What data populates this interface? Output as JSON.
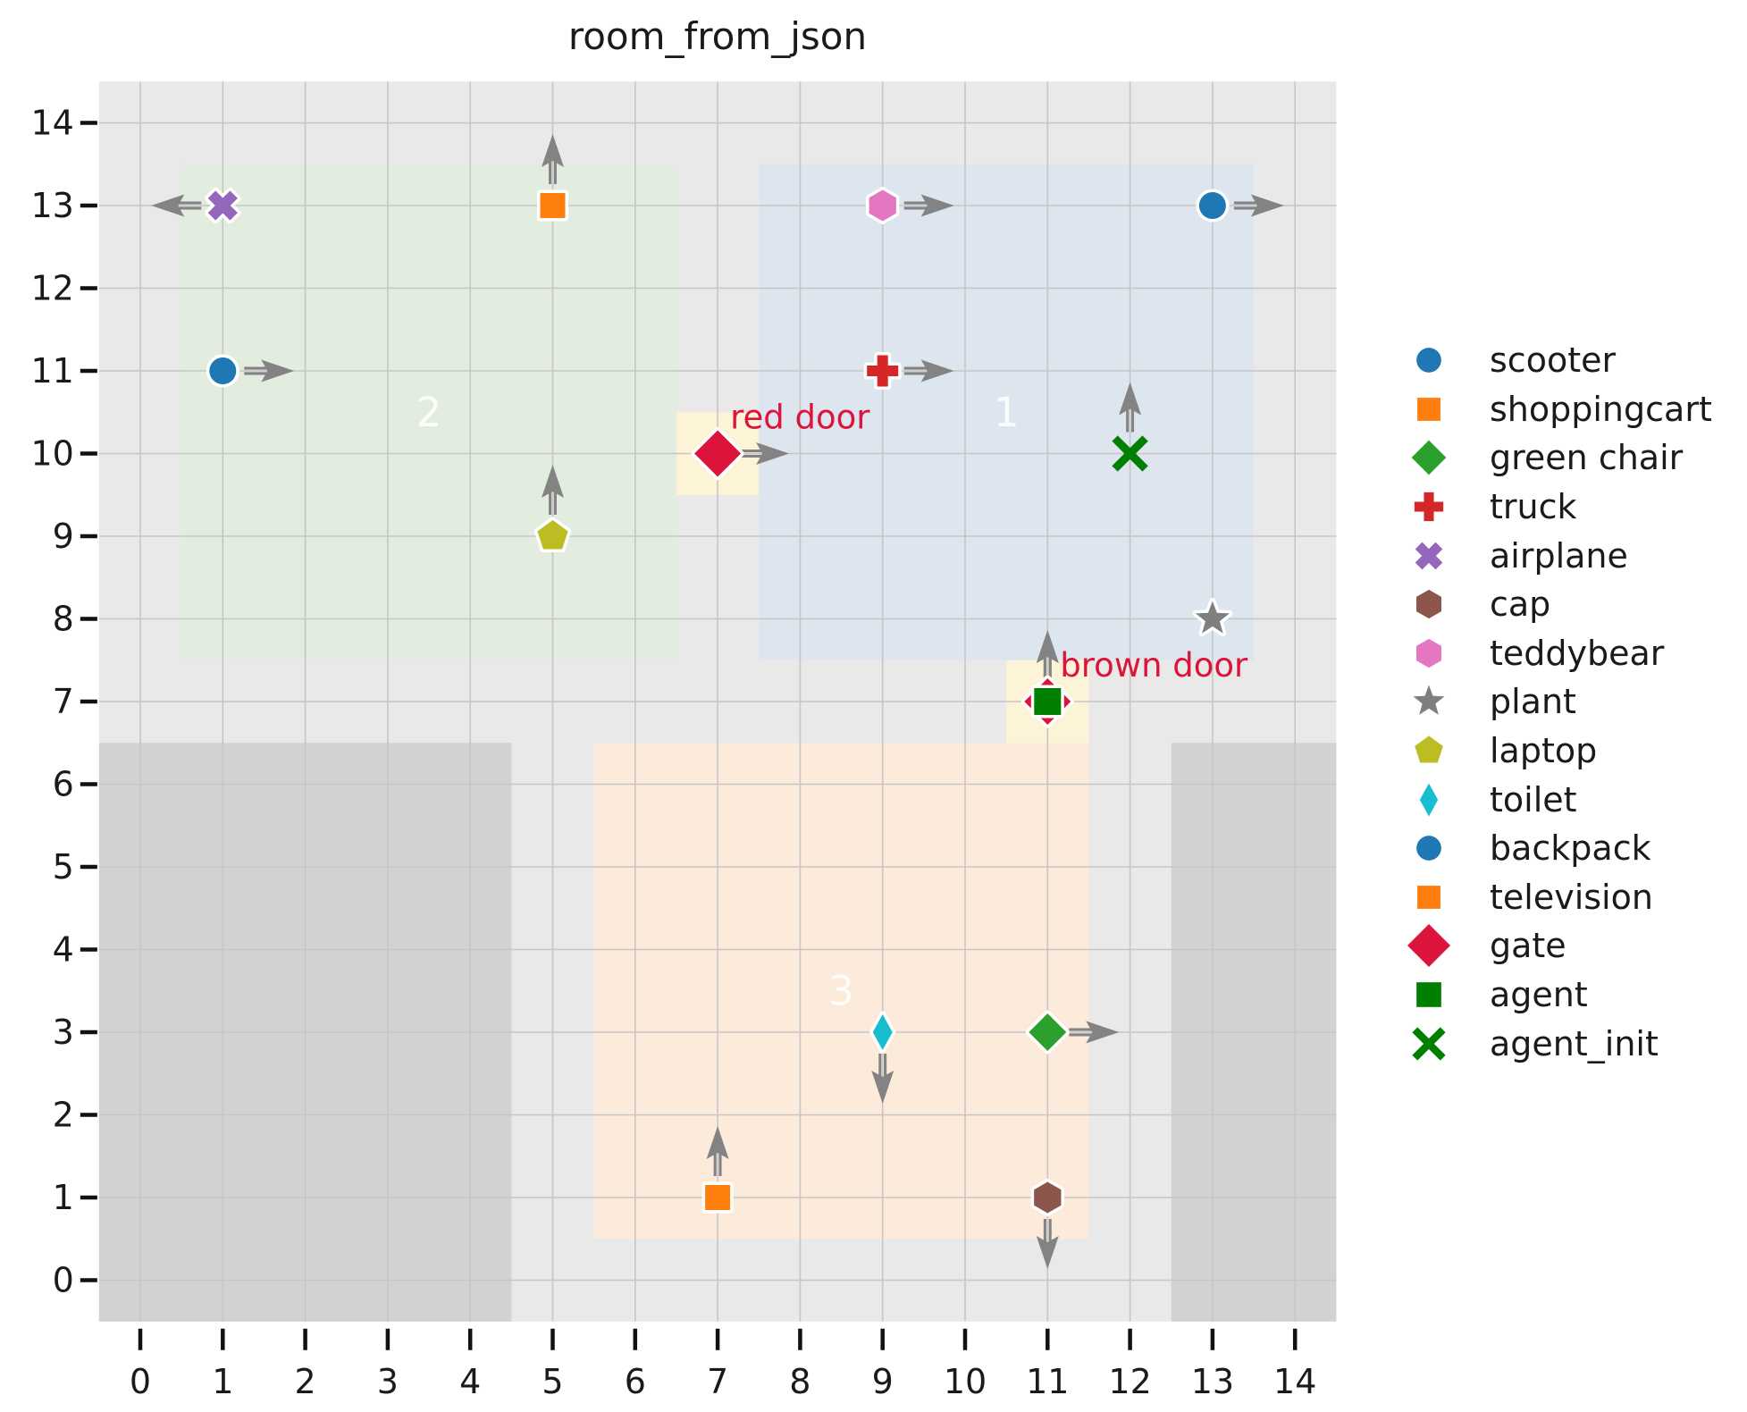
{
  "chart_data": {
    "type": "scatter",
    "title": "room_from_json",
    "xlabel": "",
    "ylabel": "",
    "xlim": [
      -0.5,
      14.5
    ],
    "ylim": [
      -0.5,
      14.5
    ],
    "xticks": [
      0,
      1,
      2,
      3,
      4,
      5,
      6,
      7,
      8,
      9,
      10,
      11,
      12,
      13,
      14
    ],
    "yticks": [
      0,
      1,
      2,
      3,
      4,
      5,
      6,
      7,
      8,
      9,
      10,
      11,
      12,
      13,
      14
    ],
    "grid": true,
    "legend_position": "right",
    "colors": {
      "plot_background": "#e9e9e9",
      "blocked_area": "#d2d2d2",
      "gridline": "#c6c6c6",
      "tick": "#111111",
      "tick_label": "#1a1a1a",
      "arrow": "#838383",
      "door_box": "#fdf3d7",
      "door_label": "#dc143c",
      "room_label": "#ffffff"
    },
    "rooms": [
      {
        "id": "1",
        "x": [
          7.5,
          13.5
        ],
        "y": [
          7.5,
          13.5
        ],
        "fill": "#dde6ee",
        "label_xy": [
          10.5,
          10.5
        ]
      },
      {
        "id": "2",
        "x": [
          0.5,
          6.5
        ],
        "y": [
          7.5,
          13.5
        ],
        "fill": "#e2ecdf",
        "label_xy": [
          3.5,
          10.5
        ]
      },
      {
        "id": "3",
        "x": [
          5.5,
          11.5
        ],
        "y": [
          0.5,
          6.5
        ],
        "fill": "#fcebda",
        "label_xy": [
          8.5,
          3.5
        ]
      }
    ],
    "blocked_areas": [
      {
        "x": [
          -0.5,
          4.5
        ],
        "y": [
          -0.5,
          6.5
        ]
      },
      {
        "x": [
          12.5,
          14.5
        ],
        "y": [
          -0.5,
          6.5
        ]
      }
    ],
    "doors": [
      {
        "label": "red door",
        "x": 7,
        "y": 10
      },
      {
        "label": "brown door",
        "x": 11,
        "y": 7
      }
    ],
    "objects": [
      {
        "name": "airplane",
        "marker": "x-filled",
        "color": "#9467bd",
        "x": 1,
        "y": 13,
        "dir": "left"
      },
      {
        "name": "shoppingcart",
        "marker": "square",
        "color": "#ff7f0e",
        "x": 5,
        "y": 13,
        "dir": "up"
      },
      {
        "name": "teddybear",
        "marker": "hexagon",
        "color": "#e377c2",
        "x": 9,
        "y": 13,
        "dir": "right"
      },
      {
        "name": "backpack",
        "marker": "circle",
        "color": "#1f77b4",
        "x": 13,
        "y": 13,
        "dir": "right"
      },
      {
        "name": "scooter",
        "marker": "circle",
        "color": "#1f77b4",
        "x": 1,
        "y": 11,
        "dir": "right"
      },
      {
        "name": "truck",
        "marker": "plus",
        "color": "#d62728",
        "x": 9,
        "y": 11,
        "dir": "right"
      },
      {
        "name": "gate",
        "marker": "diamond-large",
        "color": "#dc143c",
        "x": 7,
        "y": 10,
        "dir": "right"
      },
      {
        "name": "agent_init",
        "marker": "x-stroke",
        "color": "#008000",
        "x": 12,
        "y": 10,
        "dir": "up"
      },
      {
        "name": "laptop",
        "marker": "pentagon",
        "color": "#bcbd22",
        "x": 5,
        "y": 9,
        "dir": "up"
      },
      {
        "name": "plant",
        "marker": "star",
        "color": "#7f7f7f",
        "x": 13,
        "y": 8,
        "dir": null
      },
      {
        "name": "gate",
        "marker": "diamond-large",
        "color": "#dc143c",
        "x": 11,
        "y": 7,
        "dir": "up"
      },
      {
        "name": "agent",
        "marker": "square-large",
        "color": "#008000",
        "x": 11,
        "y": 7,
        "dir": "up"
      },
      {
        "name": "toilet",
        "marker": "thin-diamond",
        "color": "#17becf",
        "x": 9,
        "y": 3,
        "dir": "down"
      },
      {
        "name": "green chair",
        "marker": "diamond",
        "color": "#2ca02c",
        "x": 11,
        "y": 3,
        "dir": "right"
      },
      {
        "name": "television",
        "marker": "square",
        "color": "#ff7f0e",
        "x": 7,
        "y": 1,
        "dir": "up"
      },
      {
        "name": "cap",
        "marker": "hexagon",
        "color": "#8c564b",
        "x": 11,
        "y": 1,
        "dir": "down"
      }
    ],
    "legend": [
      {
        "label": "scooter",
        "marker": "circle",
        "color": "#1f77b4"
      },
      {
        "label": "shoppingcart",
        "marker": "square",
        "color": "#ff7f0e"
      },
      {
        "label": "green chair",
        "marker": "diamond",
        "color": "#2ca02c"
      },
      {
        "label": "truck",
        "marker": "plus",
        "color": "#d62728"
      },
      {
        "label": "airplane",
        "marker": "x-filled",
        "color": "#9467bd"
      },
      {
        "label": "cap",
        "marker": "hexagon",
        "color": "#8c564b"
      },
      {
        "label": "teddybear",
        "marker": "hexagon",
        "color": "#e377c2"
      },
      {
        "label": "plant",
        "marker": "star",
        "color": "#7f7f7f"
      },
      {
        "label": "laptop",
        "marker": "pentagon",
        "color": "#bcbd22"
      },
      {
        "label": "toilet",
        "marker": "thin-diamond",
        "color": "#17becf"
      },
      {
        "label": "backpack",
        "marker": "circle",
        "color": "#1f77b4"
      },
      {
        "label": "television",
        "marker": "square",
        "color": "#ff7f0e"
      },
      {
        "label": "gate",
        "marker": "diamond-large",
        "color": "#dc143c"
      },
      {
        "label": "agent",
        "marker": "square-large",
        "color": "#008000"
      },
      {
        "label": "agent_init",
        "marker": "x-stroke",
        "color": "#008000"
      }
    ]
  }
}
